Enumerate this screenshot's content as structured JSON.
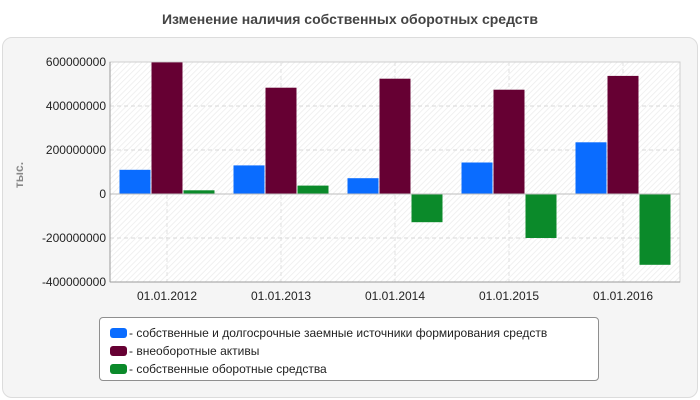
{
  "chart_data": {
    "type": "bar",
    "title": "Изменение наличия собственных оборотных средств",
    "ylabel": "тыс.",
    "xlabel": "",
    "categories": [
      "01.01.2012",
      "01.01.2013",
      "01.01.2014",
      "01.01.2015",
      "01.01.2016"
    ],
    "ylim": [
      -400000000,
      600000000
    ],
    "yticks": [
      {
        "value": 600000000,
        "label": "600000000"
      },
      {
        "value": 400000000,
        "label": "400000000"
      },
      {
        "value": 200000000,
        "label": "200000000"
      },
      {
        "value": 0,
        "label": "0"
      },
      {
        "value": -200000000,
        "label": "-200000000"
      },
      {
        "value": -400000000,
        "label": "-400000000"
      }
    ],
    "grid": true,
    "legend_position": "bottom",
    "series": [
      {
        "name": "- собственные и долгосрочные заемные источники формирования средств",
        "color": "#0a6cff",
        "values": [
          110000000,
          130000000,
          72000000,
          143000000,
          235000000
        ]
      },
      {
        "name": "- внеоборотные активы",
        "color": "#660033",
        "values": [
          598000000,
          483000000,
          524000000,
          474000000,
          537000000
        ]
      },
      {
        "name": "- собственные оборотные средства",
        "color": "#0b8a2a",
        "values": [
          17000000,
          38000000,
          -128000000,
          -200000000,
          -322000000
        ]
      }
    ]
  }
}
